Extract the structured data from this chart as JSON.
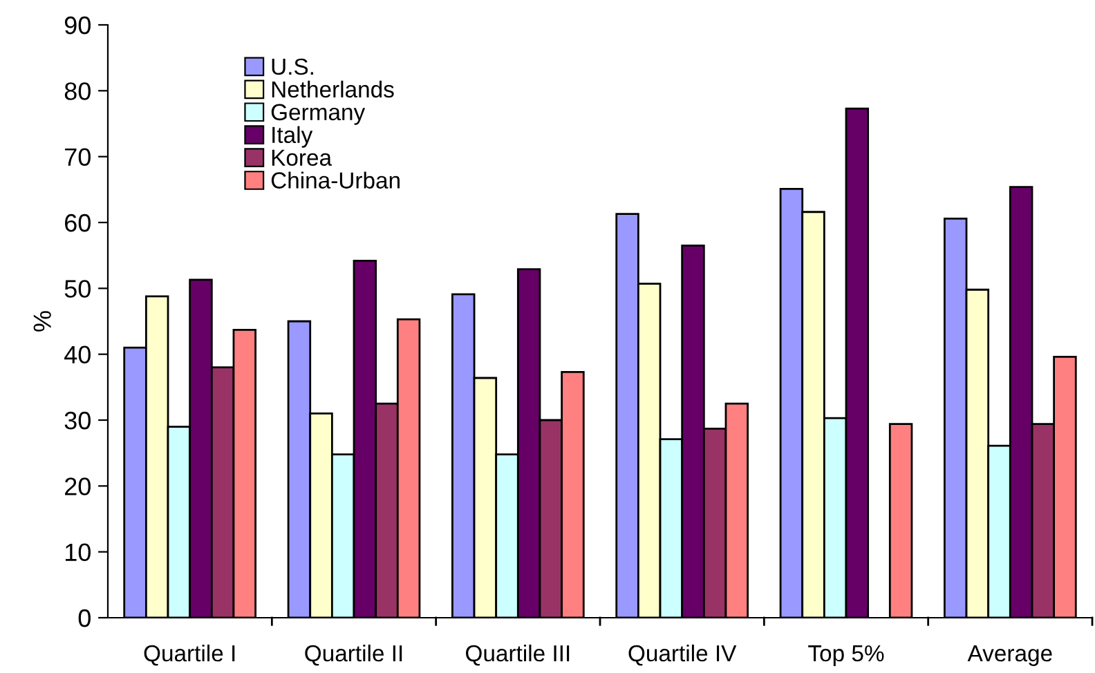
{
  "chart_data": {
    "type": "bar",
    "ylabel": "%",
    "categories": [
      "Quartile I",
      "Quartile II",
      "Quartile III",
      "Quartile IV",
      "Top 5%",
      "Average"
    ],
    "series": [
      {
        "name": "U.S.",
        "color": "#9999ff",
        "values": [
          41,
          45,
          49.1,
          61.3,
          65.1,
          60.6
        ]
      },
      {
        "name": "Netherlands",
        "color": "#ffffcc",
        "values": [
          48.8,
          31,
          36.4,
          50.7,
          61.6,
          49.8
        ]
      },
      {
        "name": "Germany",
        "color": "#ccffff",
        "values": [
          29,
          24.8,
          24.8,
          27.1,
          30.3,
          26.1
        ]
      },
      {
        "name": "Italy",
        "color": "#660066",
        "values": [
          51.3,
          54.2,
          52.9,
          56.5,
          77.3,
          65.4
        ]
      },
      {
        "name": "Korea",
        "color": "#993366",
        "values": [
          38,
          32.5,
          30,
          28.7,
          null,
          29.4
        ]
      },
      {
        "name": "China-Urban",
        "color": "#ff8080",
        "values": [
          43.7,
          45.3,
          37.3,
          32.5,
          29.4,
          39.6
        ]
      }
    ],
    "ylim": [
      0,
      90
    ],
    "yticks": [
      0,
      10,
      20,
      30,
      40,
      50,
      60,
      70,
      80,
      90
    ],
    "grid": false,
    "legend": "top left"
  }
}
